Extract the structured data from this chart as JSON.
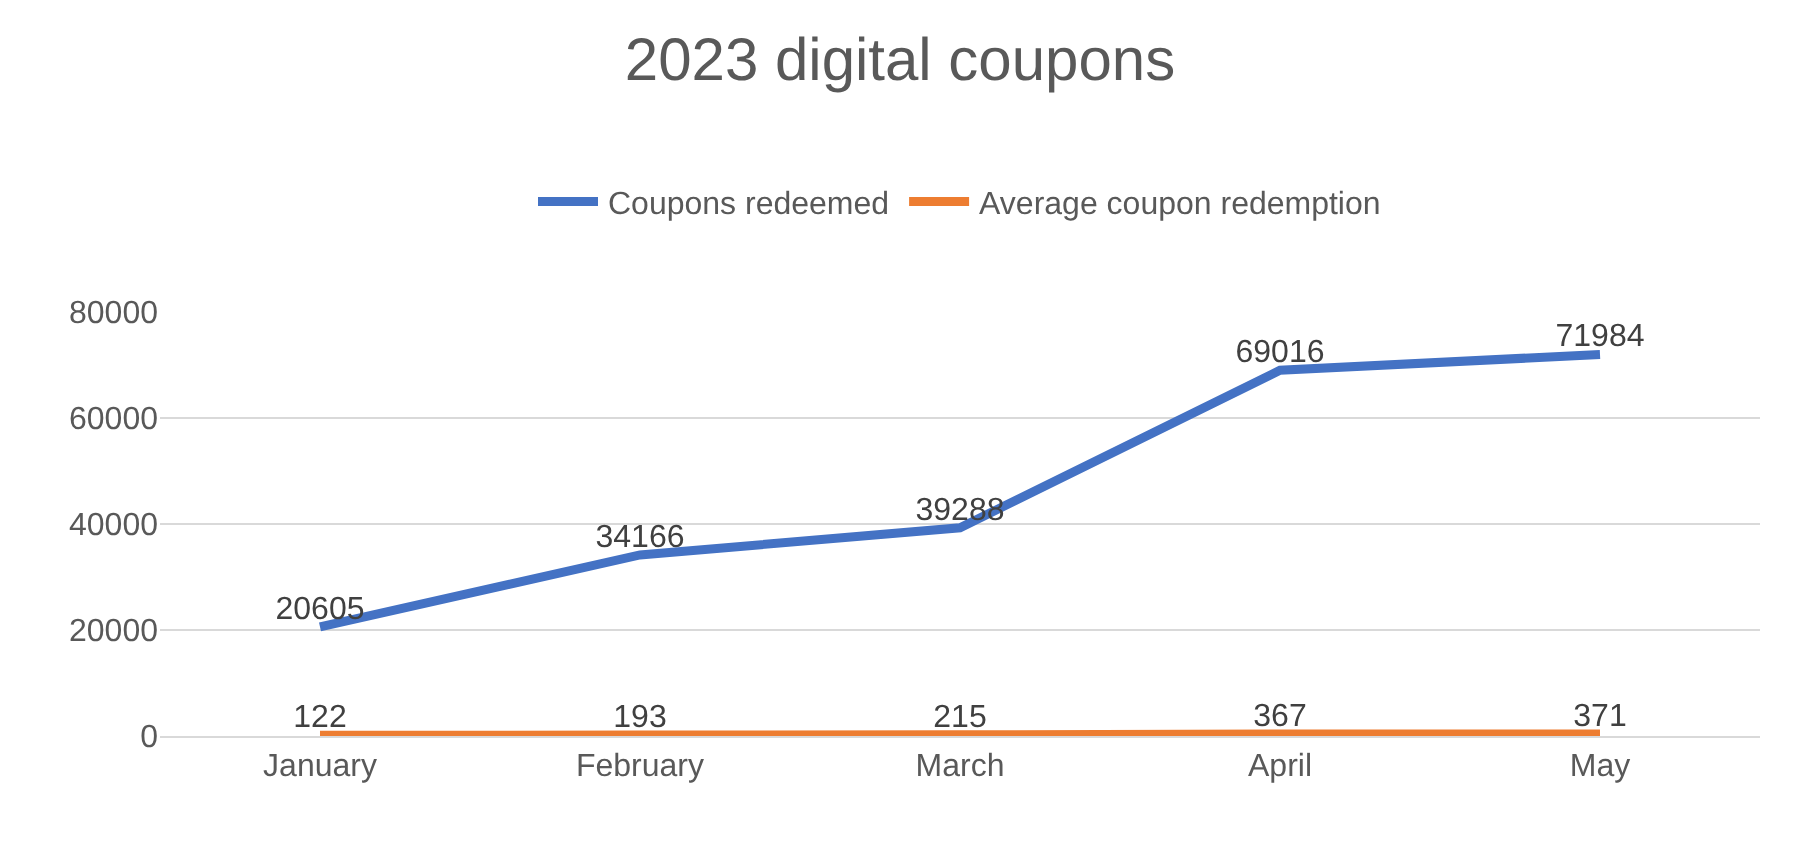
{
  "chart_data": {
    "type": "line",
    "title": "2023 digital coupons",
    "categories": [
      "January",
      "February",
      "March",
      "April",
      "May"
    ],
    "series": [
      {
        "name": "Coupons redeemed",
        "color": "#4472c4",
        "values": [
          20605,
          34166,
          39288,
          69016,
          71984
        ]
      },
      {
        "name": "Average coupon redemption",
        "color": "#ed7d31",
        "values": [
          122,
          193,
          215,
          367,
          371
        ]
      }
    ],
    "ylim": [
      0,
      80000
    ],
    "yticks": [
      0,
      20000,
      40000,
      60000,
      80000
    ],
    "grid": "y",
    "legend": "top",
    "data_labels": true,
    "marker": "none",
    "line_style": "solid"
  }
}
